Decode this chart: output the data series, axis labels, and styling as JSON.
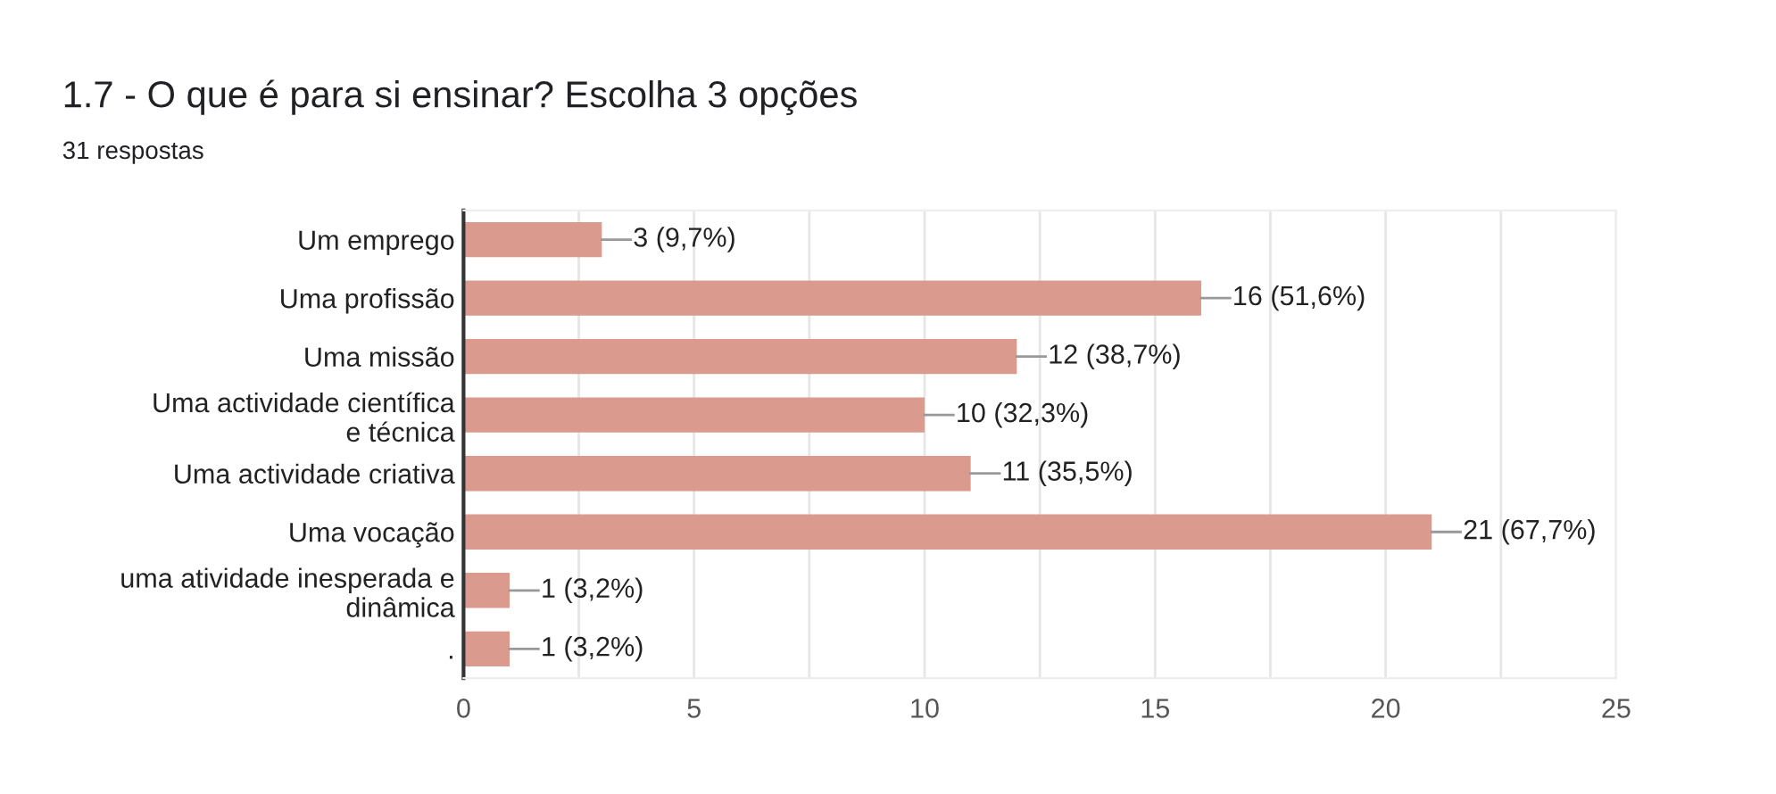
{
  "chart_data": {
    "type": "bar",
    "orientation": "horizontal",
    "title": "1.7 - O que é para si ensinar? Escolha 3 opções",
    "subtitle": "31 respostas",
    "categories": [
      "Um emprego",
      "Uma profissão",
      "Uma missão",
      "Uma actividade científica e técnica",
      "Uma actividade criativa",
      "Uma vocação",
      "uma atividade inesperada e dinâmica",
      "."
    ],
    "values": [
      3,
      16,
      12,
      10,
      11,
      21,
      1,
      1
    ],
    "value_labels": [
      "3 (9,7%)",
      "16 (51,6%)",
      "12 (38,7%)",
      "10 (32,3%)",
      "11 (35,5%)",
      "21 (67,7%)",
      "1 (3,2%)",
      "1 (3,2%)"
    ],
    "color": "#da9a8e",
    "xlim": [
      0,
      25
    ],
    "xticks": [
      0,
      {
        "value": 2.5,
        "label": null
      },
      5,
      {
        "value": 7.5,
        "label": null
      },
      10,
      {
        "value": 12.5,
        "label": null
      },
      15,
      {
        "value": 17.5,
        "label": null
      },
      20,
      {
        "value": 22.5,
        "label": null
      },
      25
    ],
    "grid": "x",
    "legend": false
  }
}
